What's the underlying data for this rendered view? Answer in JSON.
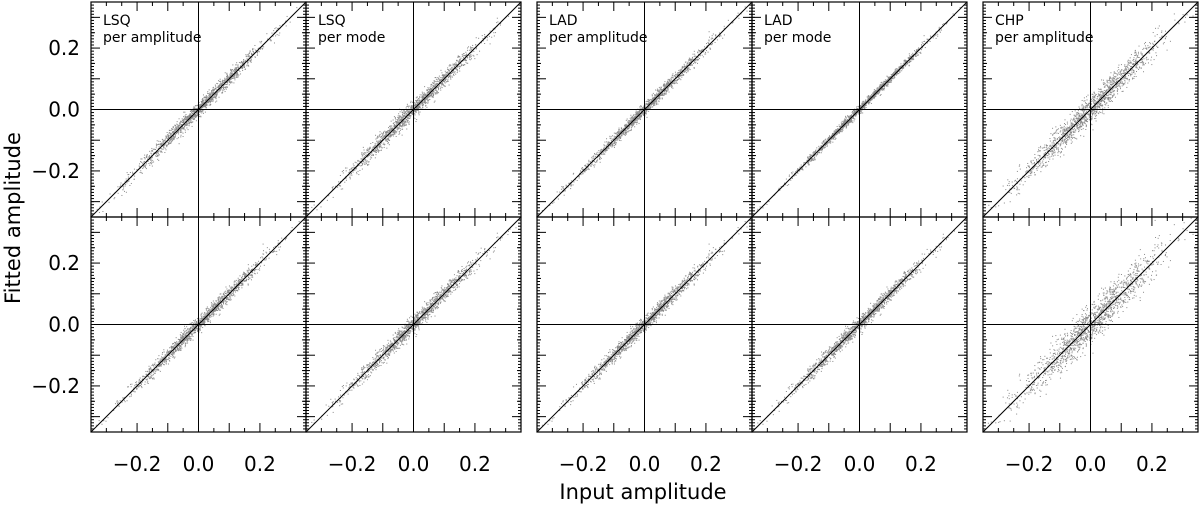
{
  "chart_data": {
    "type": "scatter",
    "xlabel": "Input amplitude",
    "ylabel": "Fitted amplitude",
    "xlim": [
      -0.35,
      0.35
    ],
    "ylim": [
      -0.35,
      0.35
    ],
    "ticks": [
      -0.2,
      0.0,
      0.2
    ],
    "tick_labels": [
      "−0.2",
      "0.0",
      "0.2"
    ],
    "grid": false,
    "reference_lines": [
      "y = x",
      "x = 0",
      "y = 0"
    ],
    "point_color": "#8a8a8a",
    "line_color": "#000000",
    "columns": [
      {
        "label_line1": "LSQ",
        "label_line2": "per amplitude"
      },
      {
        "label_line1": "LSQ",
        "label_line2": "per mode"
      },
      {
        "label_line1": "LAD",
        "label_line2": "per amplitude"
      },
      {
        "label_line1": "LAD",
        "label_line2": "per mode"
      },
      {
        "label_line1": "CHP",
        "label_line2": "per amplitude"
      }
    ],
    "panels": [
      {
        "row": 0,
        "col": 0,
        "scatter_spread": 0.012,
        "n_points": 1500
      },
      {
        "row": 0,
        "col": 1,
        "scatter_spread": 0.014,
        "n_points": 1500
      },
      {
        "row": 0,
        "col": 2,
        "scatter_spread": 0.01,
        "n_points": 1500
      },
      {
        "row": 0,
        "col": 3,
        "scatter_spread": 0.007,
        "n_points": 1500
      },
      {
        "row": 0,
        "col": 4,
        "scatter_spread": 0.022,
        "n_points": 1500
      },
      {
        "row": 1,
        "col": 0,
        "scatter_spread": 0.012,
        "n_points": 1500
      },
      {
        "row": 1,
        "col": 1,
        "scatter_spread": 0.014,
        "n_points": 1500
      },
      {
        "row": 1,
        "col": 2,
        "scatter_spread": 0.012,
        "n_points": 1500
      },
      {
        "row": 1,
        "col": 3,
        "scatter_spread": 0.012,
        "n_points": 1500
      },
      {
        "row": 1,
        "col": 4,
        "scatter_spread": 0.03,
        "n_points": 1500
      }
    ]
  }
}
